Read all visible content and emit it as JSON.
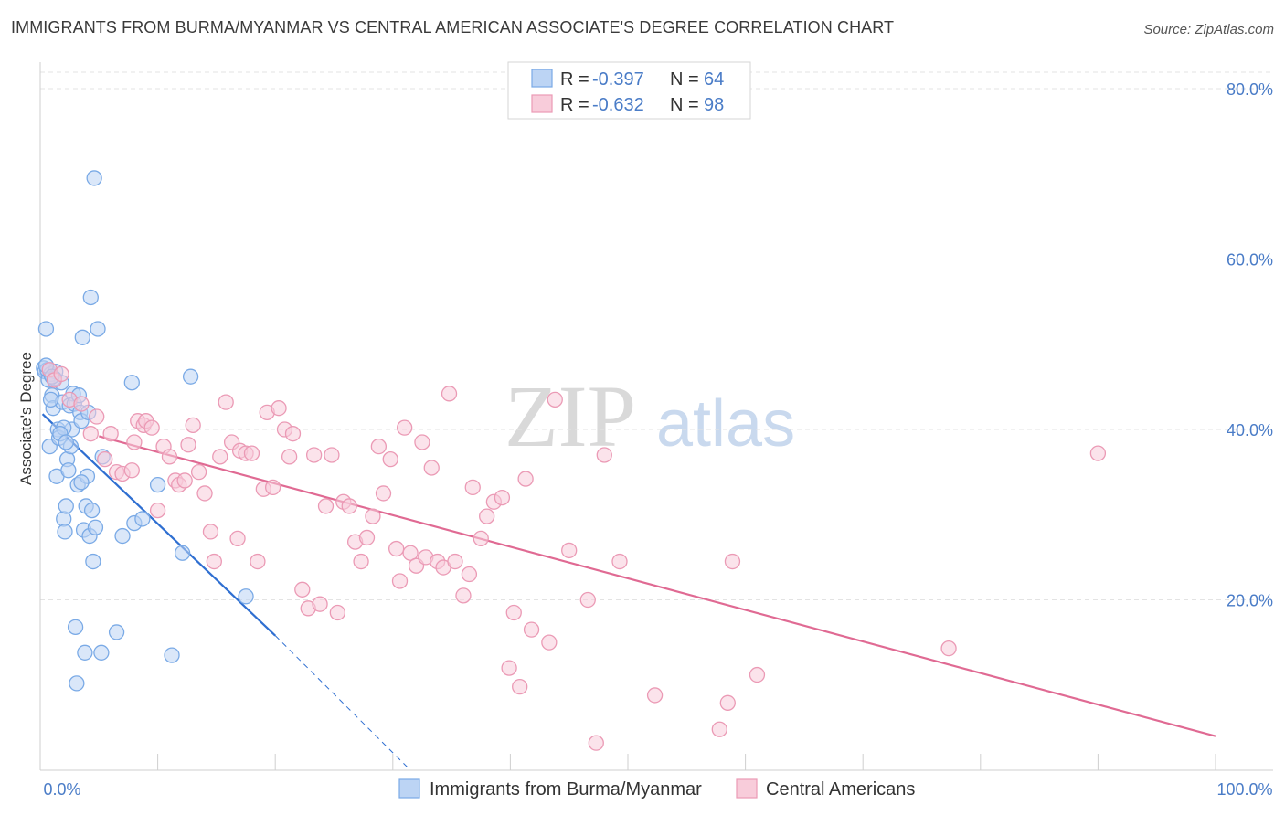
{
  "title": "IMMIGRANTS FROM BURMA/MYANMAR VS CENTRAL AMERICAN ASSOCIATE'S DEGREE CORRELATION CHART",
  "source": "Source: ZipAtlas.com",
  "watermark": {
    "part1": "ZIP",
    "part2": "atlas"
  },
  "chart_data": {
    "type": "scatter",
    "title": "IMMIGRANTS FROM BURMA/MYANMAR VS CENTRAL AMERICAN ASSOCIATE'S DEGREE CORRELATION CHART",
    "xlabel": "",
    "ylabel": "Associate's Degree",
    "xlim": [
      0,
      100
    ],
    "ylim": [
      0,
      80
    ],
    "x_tick_labels": {
      "min": "0.0%",
      "max": "100.0%"
    },
    "y_ticks": [
      {
        "value": 20,
        "label": "20.0%"
      },
      {
        "value": 40,
        "label": "40.0%"
      },
      {
        "value": 60,
        "label": "60.0%"
      },
      {
        "value": 80,
        "label": "80.0%"
      }
    ],
    "grid": true,
    "legend": {
      "position": "top-center",
      "entries": [
        {
          "r_label": "R = ",
          "r_value": "-0.397",
          "n_label": "N = ",
          "n_value": "64"
        },
        {
          "r_label": "R = ",
          "r_value": "-0.632",
          "n_label": "N = ",
          "n_value": "98"
        }
      ]
    },
    "series": [
      {
        "name": "Immigrants from Burma/Myanmar",
        "color": "#7aaae6",
        "fill": "#bcd4f4",
        "trend": {
          "x": [
            0.2,
            20
          ],
          "y": [
            41.8,
            15.8
          ],
          "dashed_to": {
            "x": 31.5,
            "y": 0
          },
          "color": "#2f6fd1"
        },
        "points": [
          [
            0.3,
            47.2
          ],
          [
            0.4,
            46.8
          ],
          [
            0.5,
            51.8
          ],
          [
            0.6,
            47.0
          ],
          [
            0.7,
            45.8
          ],
          [
            0.8,
            38.0
          ],
          [
            0.9,
            46.5
          ],
          [
            1.0,
            44.0
          ],
          [
            1.1,
            42.5
          ],
          [
            1.3,
            46.8
          ],
          [
            1.4,
            34.5
          ],
          [
            1.5,
            40.0
          ],
          [
            1.6,
            39.0
          ],
          [
            1.8,
            45.5
          ],
          [
            1.9,
            43.2
          ],
          [
            2.0,
            29.5
          ],
          [
            2.1,
            28.0
          ],
          [
            2.2,
            31.0
          ],
          [
            2.3,
            36.5
          ],
          [
            2.4,
            35.2
          ],
          [
            2.5,
            42.8
          ],
          [
            2.6,
            38.0
          ],
          [
            2.7,
            40.0
          ],
          [
            2.8,
            44.2
          ],
          [
            2.9,
            43.0
          ],
          [
            3.0,
            16.8
          ],
          [
            3.1,
            10.2
          ],
          [
            3.2,
            33.5
          ],
          [
            3.3,
            44.0
          ],
          [
            3.4,
            42.0
          ],
          [
            3.5,
            41.0
          ],
          [
            3.6,
            50.8
          ],
          [
            3.7,
            28.2
          ],
          [
            3.8,
            13.8
          ],
          [
            3.9,
            31.0
          ],
          [
            4.0,
            34.5
          ],
          [
            4.1,
            42.0
          ],
          [
            4.2,
            27.5
          ],
          [
            4.3,
            55.5
          ],
          [
            4.4,
            30.5
          ],
          [
            4.5,
            24.5
          ],
          [
            4.6,
            69.5
          ],
          [
            4.7,
            28.5
          ],
          [
            4.9,
            51.8
          ],
          [
            5.2,
            13.8
          ],
          [
            5.3,
            36.8
          ],
          [
            6.5,
            16.2
          ],
          [
            7.0,
            27.5
          ],
          [
            7.8,
            45.5
          ],
          [
            8.0,
            29.0
          ],
          [
            8.7,
            29.5
          ],
          [
            10.0,
            33.5
          ],
          [
            11.2,
            13.5
          ],
          [
            12.1,
            25.5
          ],
          [
            12.8,
            46.2
          ],
          [
            17.5,
            20.4
          ],
          [
            0.5,
            47.5
          ],
          [
            1.2,
            46.0
          ],
          [
            2.0,
            40.2
          ],
          [
            1.7,
            39.5
          ],
          [
            0.9,
            43.5
          ],
          [
            3.5,
            33.8
          ],
          [
            2.2,
            38.5
          ],
          [
            1.0,
            46.2
          ]
        ]
      },
      {
        "name": "Central Americans",
        "color": "#eb9ab5",
        "fill": "#f8ccda",
        "trend": {
          "x": [
            5,
            100
          ],
          "y": [
            39.2,
            4.0
          ],
          "color": "#e06a93"
        },
        "points": [
          [
            0.8,
            47.0
          ],
          [
            1.2,
            45.8
          ],
          [
            1.8,
            46.5
          ],
          [
            2.5,
            43.5
          ],
          [
            3.5,
            43.0
          ],
          [
            4.3,
            39.5
          ],
          [
            4.8,
            41.5
          ],
          [
            5.5,
            36.5
          ],
          [
            6.0,
            39.5
          ],
          [
            6.5,
            35.0
          ],
          [
            7.0,
            34.8
          ],
          [
            7.8,
            35.2
          ],
          [
            8.0,
            38.5
          ],
          [
            8.3,
            41.0
          ],
          [
            8.8,
            40.5
          ],
          [
            9.0,
            41.0
          ],
          [
            9.5,
            40.2
          ],
          [
            10.0,
            30.5
          ],
          [
            10.5,
            38.0
          ],
          [
            11.0,
            36.8
          ],
          [
            11.5,
            34.0
          ],
          [
            11.8,
            33.5
          ],
          [
            12.3,
            34.0
          ],
          [
            12.6,
            38.2
          ],
          [
            13.0,
            40.5
          ],
          [
            13.5,
            35.0
          ],
          [
            14.0,
            32.5
          ],
          [
            14.5,
            28.0
          ],
          [
            14.8,
            24.5
          ],
          [
            15.3,
            36.8
          ],
          [
            15.8,
            43.2
          ],
          [
            16.3,
            38.5
          ],
          [
            16.8,
            27.2
          ],
          [
            17.0,
            37.5
          ],
          [
            17.5,
            37.2
          ],
          [
            18.0,
            37.2
          ],
          [
            18.5,
            24.5
          ],
          [
            19.0,
            33.0
          ],
          [
            19.3,
            42.0
          ],
          [
            19.8,
            33.2
          ],
          [
            20.3,
            42.5
          ],
          [
            20.8,
            40.0
          ],
          [
            21.2,
            36.8
          ],
          [
            21.5,
            39.5
          ],
          [
            22.3,
            21.2
          ],
          [
            22.8,
            19.0
          ],
          [
            23.3,
            37.0
          ],
          [
            23.8,
            19.5
          ],
          [
            24.3,
            31.0
          ],
          [
            24.8,
            37.0
          ],
          [
            25.3,
            18.5
          ],
          [
            25.8,
            31.5
          ],
          [
            26.3,
            31.0
          ],
          [
            26.8,
            26.8
          ],
          [
            27.3,
            24.5
          ],
          [
            27.8,
            27.3
          ],
          [
            28.3,
            29.8
          ],
          [
            28.8,
            38.0
          ],
          [
            29.2,
            32.5
          ],
          [
            29.8,
            36.5
          ],
          [
            30.3,
            26.0
          ],
          [
            30.6,
            22.2
          ],
          [
            31.0,
            40.2
          ],
          [
            31.5,
            25.5
          ],
          [
            32.0,
            24.0
          ],
          [
            32.5,
            38.5
          ],
          [
            32.8,
            25.0
          ],
          [
            33.3,
            35.5
          ],
          [
            33.8,
            24.5
          ],
          [
            34.3,
            23.8
          ],
          [
            34.8,
            44.2
          ],
          [
            35.3,
            24.5
          ],
          [
            36.0,
            20.5
          ],
          [
            36.5,
            23.0
          ],
          [
            36.8,
            33.2
          ],
          [
            37.5,
            27.2
          ],
          [
            38.0,
            29.8
          ],
          [
            38.6,
            31.5
          ],
          [
            39.3,
            32.0
          ],
          [
            39.9,
            12.0
          ],
          [
            40.3,
            18.5
          ],
          [
            40.8,
            9.8
          ],
          [
            41.3,
            34.2
          ],
          [
            41.8,
            16.5
          ],
          [
            43.3,
            15.0
          ],
          [
            43.8,
            43.5
          ],
          [
            45.0,
            25.8
          ],
          [
            46.6,
            20.0
          ],
          [
            47.3,
            3.2
          ],
          [
            48.0,
            37.0
          ],
          [
            49.3,
            24.5
          ],
          [
            52.3,
            8.8
          ],
          [
            57.8,
            4.8
          ],
          [
            58.5,
            7.9
          ],
          [
            58.9,
            24.5
          ],
          [
            61.0,
            11.2
          ],
          [
            77.3,
            14.3
          ],
          [
            90.0,
            37.2
          ]
        ]
      }
    ]
  }
}
